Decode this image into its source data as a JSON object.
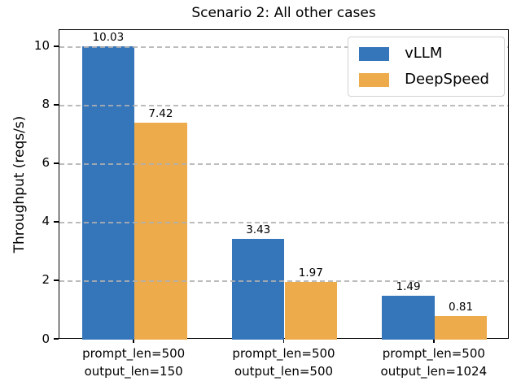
{
  "chart_data": {
    "type": "bar",
    "title": "Scenario 2: All other cases",
    "xlabel": "",
    "ylabel": "Throughput (reqs/s)",
    "categories": [
      "prompt_len=500\noutput_len=150",
      "prompt_len=500\noutput_len=500",
      "prompt_len=500\noutput_len=1024"
    ],
    "series": [
      {
        "name": "vLLM",
        "color": "#3575ba",
        "values": [
          10.03,
          3.43,
          1.49
        ]
      },
      {
        "name": "DeepSpeed",
        "color": "#edab4b",
        "values": [
          7.42,
          1.97,
          0.81
        ]
      }
    ],
    "value_labels": [
      [
        "10.03",
        "3.43",
        "1.49"
      ],
      [
        "7.42",
        "1.97",
        "0.81"
      ]
    ],
    "yticks": [
      "0",
      "2",
      "4",
      "6",
      "8",
      "10"
    ],
    "ytick_values": [
      0,
      2,
      4,
      6,
      8,
      10
    ],
    "ylim": [
      0,
      10.58
    ],
    "bar_width": 0.35,
    "grid": {
      "axis": "y",
      "style": "dashed",
      "color": "#b0b0b0"
    },
    "legend": {
      "position": "upper right",
      "entries": [
        "vLLM",
        "DeepSpeed"
      ]
    },
    "background": "#ffffff",
    "text_color": "#000000"
  }
}
